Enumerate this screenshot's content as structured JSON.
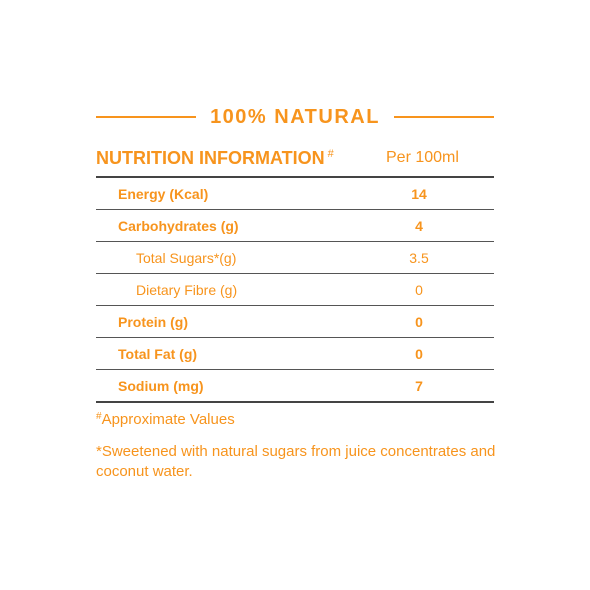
{
  "banner": {
    "title": "100% NATURAL"
  },
  "header": {
    "title": "NUTRITION INFORMATION",
    "title_mark": "#",
    "per": "Per 100ml"
  },
  "rows": [
    {
      "label": "Energy (Kcal)",
      "value": "14"
    },
    {
      "label": "Carbohydrates (g)",
      "value": "4"
    },
    {
      "label": "Total Sugars*(g)",
      "value": "3.5"
    },
    {
      "label": "Dietary Fibre (g)",
      "value": "0"
    },
    {
      "label": "Protein (g)",
      "value": "0"
    },
    {
      "label": "Total Fat (g)",
      "value": "0"
    },
    {
      "label": "Sodium (mg)",
      "value": "7"
    }
  ],
  "notes": {
    "approx_mark": "#",
    "approx": "Approximate Values",
    "sweetened": "*Sweetened with natural sugars from juice concentrates and coconut water."
  },
  "colors": {
    "accent": "#f7941d",
    "rule": "#444444"
  }
}
